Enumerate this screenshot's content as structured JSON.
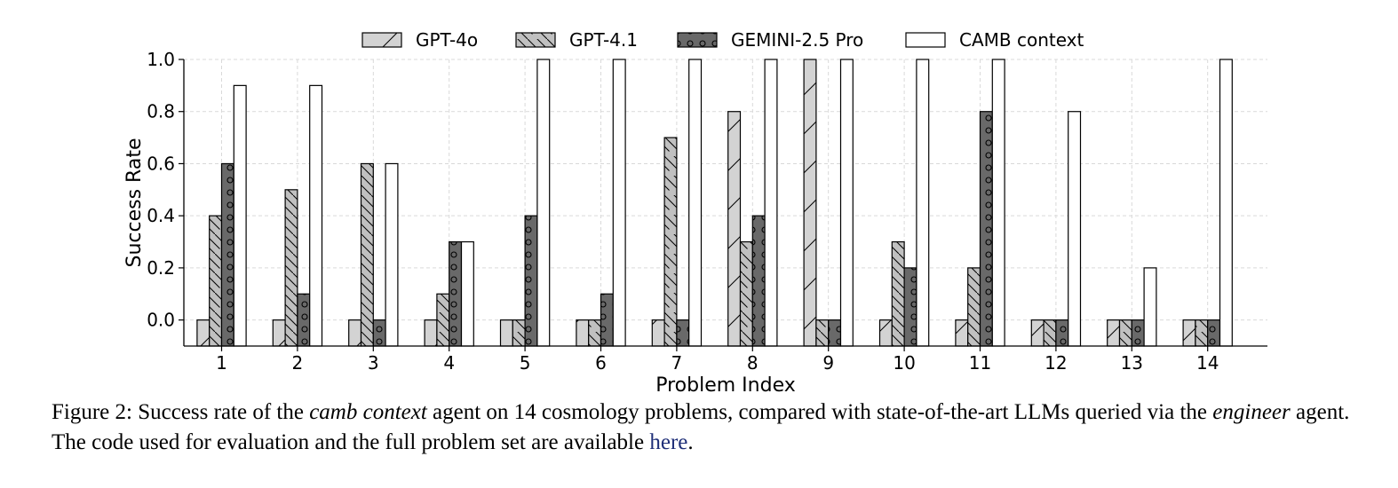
{
  "chart_data": {
    "type": "bar",
    "xlabel": "Problem Index",
    "ylabel": "Success Rate",
    "ylim": [
      -0.1,
      1.0
    ],
    "yticks": [
      "0.0",
      "0.2",
      "0.4",
      "0.6",
      "0.8",
      "1.0"
    ],
    "grid": true,
    "legend_position": "top-center",
    "categories": [
      "1",
      "2",
      "3",
      "4",
      "5",
      "6",
      "7",
      "8",
      "9",
      "10",
      "11",
      "12",
      "13",
      "14"
    ],
    "series": [
      {
        "name": "GPT-4o",
        "color": "#d3d3d3",
        "hatch": "forward-slash",
        "values": [
          0.0,
          0.0,
          0.0,
          0.0,
          0.0,
          0.0,
          0.0,
          0.8,
          1.0,
          0.0,
          0.0,
          0.0,
          0.0,
          0.0
        ]
      },
      {
        "name": "GPT-4.1",
        "color": "#c0c0c0",
        "hatch": "back-slash",
        "values": [
          0.4,
          0.5,
          0.6,
          0.1,
          0.0,
          0.0,
          0.7,
          0.3,
          0.0,
          0.3,
          0.2,
          0.0,
          0.0,
          0.0
        ]
      },
      {
        "name": "GEMINI-2.5 Pro",
        "color": "#696969",
        "hatch": "circles",
        "values": [
          0.6,
          0.1,
          0.0,
          0.3,
          0.4,
          0.1,
          0.0,
          0.4,
          0.0,
          0.2,
          0.8,
          0.0,
          0.0,
          0.0
        ]
      },
      {
        "name": "CAMB context",
        "color": "#ffffff",
        "hatch": "none",
        "values": [
          0.9,
          0.9,
          0.6,
          0.3,
          1.0,
          1.0,
          1.0,
          1.0,
          1.0,
          1.0,
          1.0,
          0.8,
          0.2,
          1.0
        ]
      }
    ]
  },
  "caption": {
    "lead": "Figure 2:  Success rate of the ",
    "italic1": "camb context",
    "mid1": " agent on 14 cosmology problems, compared with state-of-the-art LLMs queried via the ",
    "italic2": "engineer",
    "mid2": " agent. The code used for evaluation and the full problem set are available ",
    "link": "here",
    "end": "."
  }
}
